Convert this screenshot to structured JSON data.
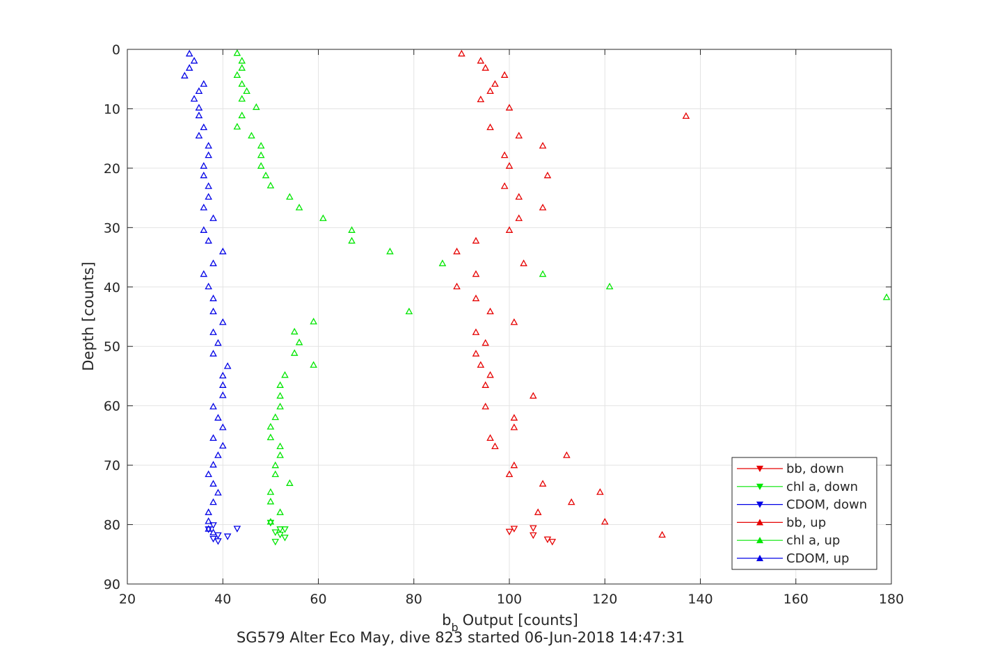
{
  "chart_data": {
    "type": "scatter",
    "title": "",
    "caption": "SG579 Alter Eco May, dive 823 started 06-Jun-2018 14:47:31",
    "xlabel": "Output [counts]",
    "xlabel_prefix": "b",
    "xlabel_sub": "b",
    "ylabel": "Depth [counts]",
    "xlim": [
      20,
      180
    ],
    "ylim": [
      0,
      90
    ],
    "y_reversed": true,
    "xticks": [
      20,
      40,
      60,
      80,
      100,
      120,
      140,
      160,
      180
    ],
    "yticks": [
      0,
      10,
      20,
      30,
      40,
      50,
      60,
      70,
      80,
      90
    ],
    "grid": true,
    "legend_position": "bottom-right",
    "series": [
      {
        "name": "bb, down",
        "color": "#e60000",
        "marker": "triangle-down",
        "points": [
          [
            101,
            80.7
          ],
          [
            100,
            81.2
          ],
          [
            105,
            80.6
          ],
          [
            105,
            81.8
          ],
          [
            108,
            82.5
          ],
          [
            109,
            82.9
          ]
        ]
      },
      {
        "name": "chl a, down",
        "color": "#00e600",
        "marker": "triangle-down",
        "points": [
          [
            50,
            79.7
          ],
          [
            52,
            80.8
          ],
          [
            53,
            80.8
          ],
          [
            51,
            81.3
          ],
          [
            52,
            81.7
          ],
          [
            53,
            82.2
          ],
          [
            51,
            82.9
          ]
        ]
      },
      {
        "name": "CDOM, down",
        "color": "#0000e6",
        "marker": "triangle-down",
        "points": [
          [
            38,
            80.1
          ],
          [
            37,
            80.8
          ],
          [
            43,
            80.7
          ],
          [
            39,
            81.8
          ],
          [
            41,
            82.0
          ],
          [
            38,
            82.4
          ],
          [
            39,
            82.8
          ]
        ]
      },
      {
        "name": "bb, up",
        "color": "#e60000",
        "marker": "triangle-up",
        "points": [
          [
            90,
            0.7
          ],
          [
            94,
            1.9
          ],
          [
            95,
            3.1
          ],
          [
            99,
            4.3
          ],
          [
            97,
            5.8
          ],
          [
            96,
            7.0
          ],
          [
            94,
            8.4
          ],
          [
            100,
            9.8
          ],
          [
            137,
            11.2
          ],
          [
            96,
            13.1
          ],
          [
            102,
            14.5
          ],
          [
            107,
            16.2
          ],
          [
            99,
            17.8
          ],
          [
            100,
            19.6
          ],
          [
            108,
            21.2
          ],
          [
            99,
            23.0
          ],
          [
            102,
            24.8
          ],
          [
            107,
            26.6
          ],
          [
            102,
            28.4
          ],
          [
            100,
            30.4
          ],
          [
            93,
            32.2
          ],
          [
            89,
            34.0
          ],
          [
            103,
            36.0
          ],
          [
            93,
            37.8
          ],
          [
            89,
            39.9
          ],
          [
            93,
            41.9
          ],
          [
            96,
            44.1
          ],
          [
            101,
            45.9
          ],
          [
            93,
            47.6
          ],
          [
            95,
            49.4
          ],
          [
            93,
            51.2
          ],
          [
            94,
            53.1
          ],
          [
            96,
            54.8
          ],
          [
            95,
            56.5
          ],
          [
            105,
            58.3
          ],
          [
            95,
            60.1
          ],
          [
            101,
            62.0
          ],
          [
            101,
            63.6
          ],
          [
            96,
            65.4
          ],
          [
            97,
            66.8
          ],
          [
            112,
            68.3
          ],
          [
            101,
            70.0
          ],
          [
            100,
            71.5
          ],
          [
            107,
            73.1
          ],
          [
            119,
            74.5
          ],
          [
            113,
            76.2
          ],
          [
            106,
            77.9
          ],
          [
            120,
            79.5
          ],
          [
            132,
            81.7
          ]
        ]
      },
      {
        "name": "chl a, up",
        "color": "#00e600",
        "marker": "triangle-up",
        "points": [
          [
            43,
            0.6
          ],
          [
            44,
            1.9
          ],
          [
            44,
            3.1
          ],
          [
            43,
            4.3
          ],
          [
            44,
            5.8
          ],
          [
            45,
            7.0
          ],
          [
            44,
            8.3
          ],
          [
            47,
            9.7
          ],
          [
            44,
            11.1
          ],
          [
            43,
            13.0
          ],
          [
            46,
            14.5
          ],
          [
            48,
            16.2
          ],
          [
            48,
            17.8
          ],
          [
            48,
            19.6
          ],
          [
            49,
            21.2
          ],
          [
            50,
            22.9
          ],
          [
            54,
            24.8
          ],
          [
            56,
            26.6
          ],
          [
            61,
            28.4
          ],
          [
            67,
            30.4
          ],
          [
            67,
            32.2
          ],
          [
            75,
            34.0
          ],
          [
            86,
            36.0
          ],
          [
            107,
            37.8
          ],
          [
            121,
            39.9
          ],
          [
            179,
            41.7
          ],
          [
            79,
            44.1
          ],
          [
            59,
            45.8
          ],
          [
            55,
            47.5
          ],
          [
            56,
            49.3
          ],
          [
            55,
            51.1
          ],
          [
            59,
            53.1
          ],
          [
            53,
            54.8
          ],
          [
            52,
            56.5
          ],
          [
            52,
            58.3
          ],
          [
            52,
            60.1
          ],
          [
            51,
            61.9
          ],
          [
            50,
            63.5
          ],
          [
            50,
            65.3
          ],
          [
            52,
            66.8
          ],
          [
            52,
            68.3
          ],
          [
            51,
            70.0
          ],
          [
            51,
            71.5
          ],
          [
            54,
            73.0
          ],
          [
            50,
            74.5
          ],
          [
            50,
            76.1
          ],
          [
            52,
            77.9
          ],
          [
            50,
            79.5
          ]
        ]
      },
      {
        "name": "CDOM, up",
        "color": "#0000e6",
        "marker": "triangle-up",
        "points": [
          [
            33,
            0.7
          ],
          [
            34,
            1.9
          ],
          [
            33,
            3.1
          ],
          [
            32,
            4.4
          ],
          [
            36,
            5.8
          ],
          [
            35,
            7.0
          ],
          [
            34,
            8.3
          ],
          [
            35,
            9.8
          ],
          [
            35,
            11.1
          ],
          [
            36,
            13.1
          ],
          [
            35,
            14.5
          ],
          [
            37,
            16.2
          ],
          [
            37,
            17.8
          ],
          [
            36,
            19.6
          ],
          [
            36,
            21.2
          ],
          [
            37,
            23.0
          ],
          [
            37,
            24.8
          ],
          [
            36,
            26.6
          ],
          [
            38,
            28.4
          ],
          [
            36,
            30.4
          ],
          [
            37,
            32.2
          ],
          [
            40,
            34.0
          ],
          [
            38,
            36.0
          ],
          [
            36,
            37.8
          ],
          [
            37,
            39.9
          ],
          [
            38,
            41.9
          ],
          [
            38,
            44.1
          ],
          [
            40,
            45.9
          ],
          [
            38,
            47.6
          ],
          [
            39,
            49.4
          ],
          [
            38,
            51.2
          ],
          [
            41,
            53.3
          ],
          [
            40,
            54.9
          ],
          [
            40,
            56.5
          ],
          [
            40,
            58.2
          ],
          [
            38,
            60.1
          ],
          [
            39,
            62.0
          ],
          [
            40,
            63.6
          ],
          [
            38,
            65.4
          ],
          [
            40,
            66.7
          ],
          [
            39,
            68.3
          ],
          [
            38,
            69.9
          ],
          [
            37,
            71.5
          ],
          [
            38,
            73.1
          ],
          [
            39,
            74.6
          ],
          [
            38,
            76.2
          ],
          [
            37,
            77.9
          ],
          [
            37,
            79.4
          ],
          [
            37,
            80.7
          ],
          [
            38,
            81.3
          ]
        ]
      }
    ]
  }
}
